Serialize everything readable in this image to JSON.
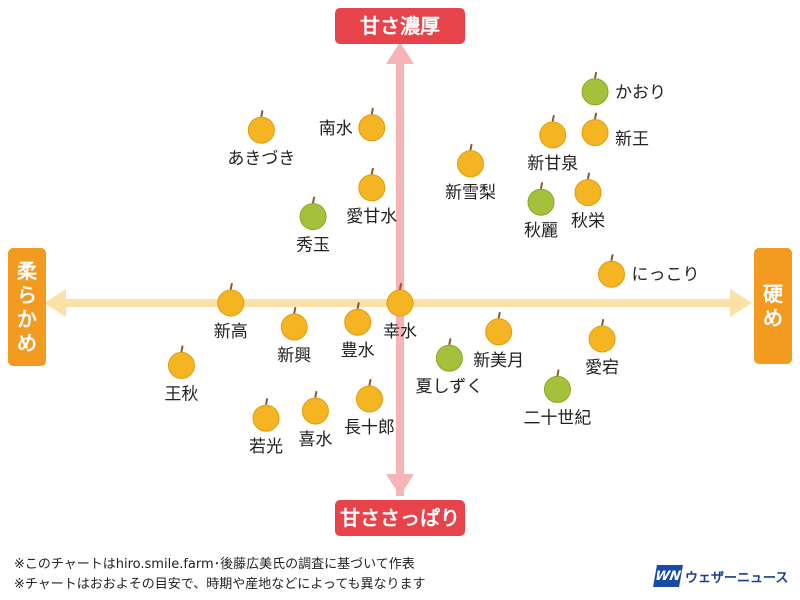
{
  "chart_data": {
    "type": "scatter",
    "title": "",
    "axes": {
      "top": "甘さ濃厚",
      "bottom": "甘ささっぱり",
      "left": "柔らかめ",
      "right": "硬め"
    },
    "colors": {
      "yellow_pear": "#f5b523",
      "green_pear": "#a5c13b",
      "axis_top_bottom": "#e8424a",
      "axis_left_right": "#f39b20",
      "vertical_arrow": "#f6b4b4",
      "horizontal_arrow": "#fbe0a8"
    },
    "points": [
      {
        "name": "かおり",
        "x": 0.83,
        "y": 0.88,
        "color": "green",
        "label_side": "right"
      },
      {
        "name": "新王",
        "x": 0.83,
        "y": 0.71,
        "color": "yellow",
        "label_side": "below-right"
      },
      {
        "name": "新甘泉",
        "x": 0.65,
        "y": 0.7,
        "color": "yellow",
        "label_side": "below"
      },
      {
        "name": "新雪梨",
        "x": 0.3,
        "y": 0.58,
        "color": "yellow",
        "label_side": "below"
      },
      {
        "name": "秋麗",
        "x": 0.6,
        "y": 0.42,
        "color": "green",
        "label_side": "below"
      },
      {
        "name": "秋栄",
        "x": 0.8,
        "y": 0.46,
        "color": "yellow",
        "label_side": "below"
      },
      {
        "name": "にっこり",
        "x": 0.9,
        "y": 0.12,
        "color": "yellow",
        "label_side": "right"
      },
      {
        "name": "愛宕",
        "x": 0.86,
        "y": -0.15,
        "color": "yellow",
        "label_side": "below"
      },
      {
        "name": "新美月",
        "x": 0.42,
        "y": -0.12,
        "color": "yellow",
        "label_side": "below"
      },
      {
        "name": "夏しずく",
        "x": 0.21,
        "y": -0.23,
        "color": "green",
        "label_side": "below"
      },
      {
        "name": "二十世紀",
        "x": 0.67,
        "y": -0.36,
        "color": "green",
        "label_side": "below"
      },
      {
        "name": "幸水",
        "x": 0.0,
        "y": 0.0,
        "color": "yellow",
        "label_side": "below"
      },
      {
        "name": "南水",
        "x": -0.12,
        "y": 0.73,
        "color": "yellow",
        "label_side": "left"
      },
      {
        "name": "あきづき",
        "x": -0.59,
        "y": 0.72,
        "color": "yellow",
        "label_side": "below"
      },
      {
        "name": "愛甘水",
        "x": -0.12,
        "y": 0.48,
        "color": "yellow",
        "label_side": "below"
      },
      {
        "name": "秀玉",
        "x": -0.37,
        "y": 0.36,
        "color": "green",
        "label_side": "below"
      },
      {
        "name": "新高",
        "x": -0.72,
        "y": 0.0,
        "color": "yellow",
        "label_side": "below"
      },
      {
        "name": "新興",
        "x": -0.45,
        "y": -0.1,
        "color": "yellow",
        "label_side": "below"
      },
      {
        "name": "豊水",
        "x": -0.18,
        "y": -0.08,
        "color": "yellow",
        "label_side": "below"
      },
      {
        "name": "王秋",
        "x": -0.93,
        "y": -0.26,
        "color": "yellow",
        "label_side": "below"
      },
      {
        "name": "長十郎",
        "x": -0.13,
        "y": -0.4,
        "color": "yellow",
        "label_side": "below"
      },
      {
        "name": "喜水",
        "x": -0.36,
        "y": -0.45,
        "color": "yellow",
        "label_side": "below"
      },
      {
        "name": "若光",
        "x": -0.57,
        "y": -0.48,
        "color": "yellow",
        "label_side": "below"
      }
    ]
  },
  "footer": {
    "note1": "※このチャートはhiro.smile.farm･後藤広美氏の調査に基づいて作表",
    "note2": "※チャートはおおよその目安で、時期や産地などによっても異なります"
  },
  "logo": {
    "mark": "WN",
    "text": "ウェザーニュース"
  }
}
